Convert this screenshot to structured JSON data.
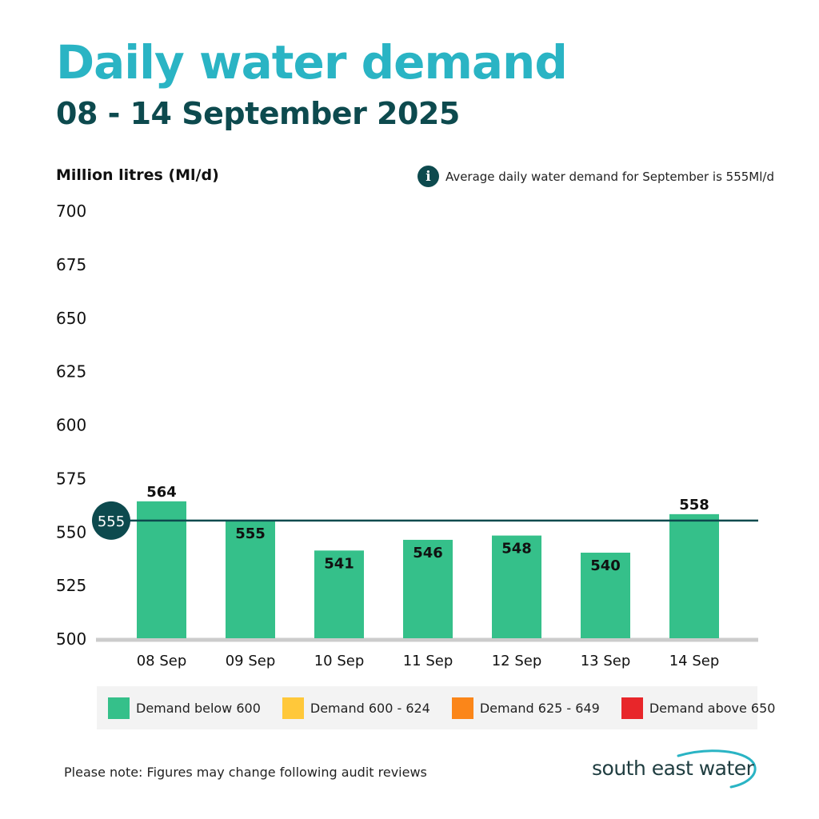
{
  "header": {
    "title": "Daily water demand",
    "subtitle": "08 - 14 September 2025"
  },
  "axis": {
    "ylabel": "Million litres (Ml/d)"
  },
  "info_note": {
    "icon": "info-icon",
    "text": "Average daily water demand for September is 555Ml/d"
  },
  "chart_data": {
    "type": "bar",
    "title": "Daily water demand",
    "subtitle": "08 - 14 September 2025",
    "xlabel": "",
    "ylabel": "Million litres (Ml/d)",
    "ylim": [
      500,
      700
    ],
    "yticks": [
      500,
      525,
      550,
      575,
      600,
      625,
      650,
      675,
      700
    ],
    "categories": [
      "08 Sep",
      "09 Sep",
      "10 Sep",
      "11 Sep",
      "12 Sep",
      "13 Sep",
      "14 Sep"
    ],
    "values": [
      564,
      555,
      541,
      546,
      548,
      540,
      558
    ],
    "reference_line": {
      "value": 555,
      "label": "555"
    },
    "grid": false,
    "legend_position": "bottom"
  },
  "legend": [
    {
      "label": "Demand below 600",
      "color": "#35c08a"
    },
    {
      "label": "Demand 600 - 624",
      "color": "#ffc83a"
    },
    {
      "label": "Demand 625 - 649",
      "color": "#fb8619"
    },
    {
      "label": "Demand above 650",
      "color": "#e8262a"
    }
  ],
  "colors": {
    "bar": "#35c08a",
    "reference_line": "#0d4a4e",
    "baseline": "#cccccc"
  },
  "footer": {
    "note": "Please note: Figures may change following audit reviews",
    "logo_text": "south east water"
  }
}
